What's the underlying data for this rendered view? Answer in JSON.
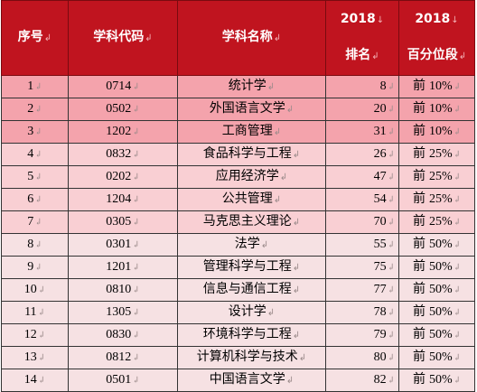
{
  "edit_mark": "↲",
  "sort_mark": "↓",
  "header": {
    "seq": "序号",
    "code": "学科代码",
    "name": "学科名称",
    "rank_year": "2018",
    "rank_label": "排名",
    "pct_year": "2018",
    "pct_label": "百分位段"
  },
  "tier_colors": {
    "top_10": "#f4a3ac",
    "top_25": "#f9cfd3",
    "top_50": "#f6e1e3",
    "header": "#c0141f"
  },
  "rows": [
    {
      "seq": "1",
      "code": "0714",
      "name": "统计学",
      "rank": "8",
      "pct_prefix": "前",
      "pct": "10%",
      "tier": "t1"
    },
    {
      "seq": "2",
      "code": "0502",
      "name": "外国语言文学",
      "rank": "20",
      "pct_prefix": "前",
      "pct": "10%",
      "tier": "t1"
    },
    {
      "seq": "3",
      "code": "1202",
      "name": "工商管理",
      "rank": "31",
      "pct_prefix": "前",
      "pct": "10%",
      "tier": "t1"
    },
    {
      "seq": "4",
      "code": "0832",
      "name": "食品科学与工程",
      "rank": "26",
      "pct_prefix": "前",
      "pct": "25%",
      "tier": "t2"
    },
    {
      "seq": "5",
      "code": "0202",
      "name": "应用经济学",
      "rank": "47",
      "pct_prefix": "前",
      "pct": "25%",
      "tier": "t2"
    },
    {
      "seq": "6",
      "code": "1204",
      "name": "公共管理",
      "rank": "54",
      "pct_prefix": "前",
      "pct": "25%",
      "tier": "t2"
    },
    {
      "seq": "7",
      "code": "0305",
      "name": "马克思主义理论",
      "rank": "70",
      "pct_prefix": "前",
      "pct": "25%",
      "tier": "t2"
    },
    {
      "seq": "8",
      "code": "0301",
      "name": "法学",
      "rank": "55",
      "pct_prefix": "前",
      "pct": "50%",
      "tier": "t3"
    },
    {
      "seq": "9",
      "code": "1201",
      "name": "管理科学与工程",
      "rank": "75",
      "pct_prefix": "前",
      "pct": "50%",
      "tier": "t3"
    },
    {
      "seq": "10",
      "code": "0810",
      "name": "信息与通信工程",
      "rank": "77",
      "pct_prefix": "前",
      "pct": "50%",
      "tier": "t3"
    },
    {
      "seq": "11",
      "code": "1305",
      "name": "设计学",
      "rank": "78",
      "pct_prefix": "前",
      "pct": "50%",
      "tier": "t3"
    },
    {
      "seq": "12",
      "code": "0830",
      "name": "环境科学与工程",
      "rank": "79",
      "pct_prefix": "前",
      "pct": "50%",
      "tier": "t3"
    },
    {
      "seq": "13",
      "code": "0812",
      "name": "计算机科学与技术",
      "rank": "80",
      "pct_prefix": "前",
      "pct": "50%",
      "tier": "t3"
    },
    {
      "seq": "14",
      "code": "0501",
      "name": "中国语言文学",
      "rank": "82",
      "pct_prefix": "前",
      "pct": "50%",
      "tier": "t3"
    }
  ]
}
